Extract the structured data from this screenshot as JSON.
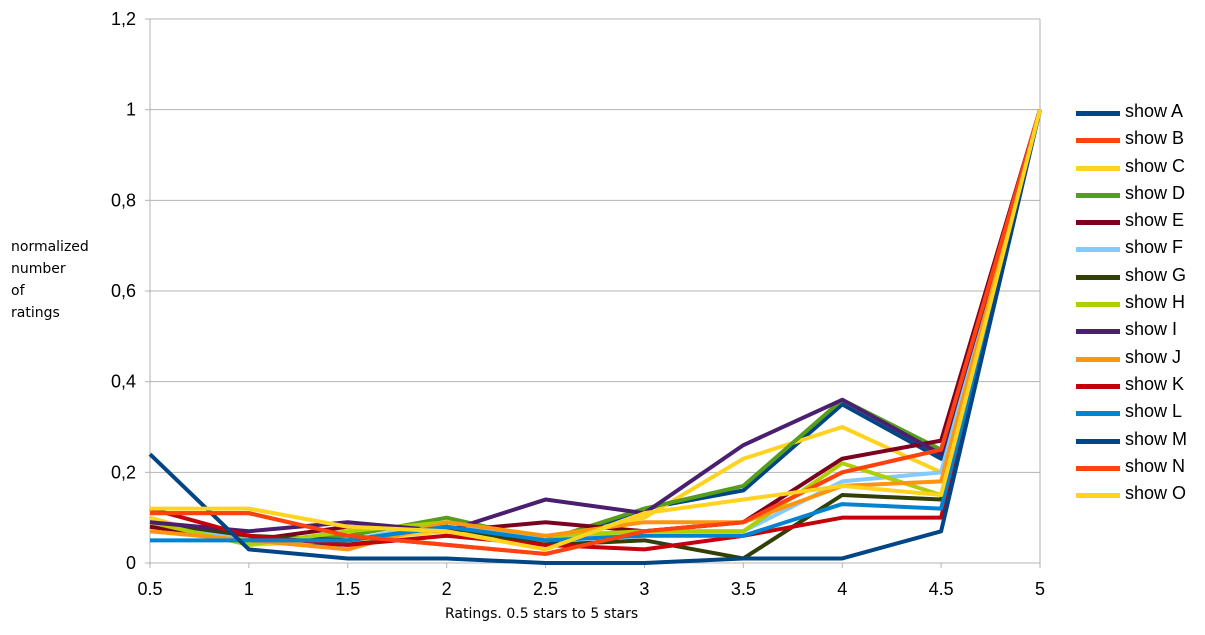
{
  "chart_data": {
    "type": "line",
    "xlabel": "Ratings. 0.5 stars to 5 stars",
    "ylabel_lines": [
      "normalized",
      "number",
      "of",
      "ratings"
    ],
    "x": [
      0.5,
      1,
      1.5,
      2,
      2.5,
      3,
      3.5,
      4,
      4.5,
      5
    ],
    "x_tick_labels": [
      "0.5",
      "1",
      "1.5",
      "2",
      "2.5",
      "3",
      "3.5",
      "4",
      "4.5",
      "5"
    ],
    "ylim": [
      0,
      1.2
    ],
    "y_ticks": [
      0,
      0.2,
      0.4,
      0.6,
      0.8,
      1,
      1.2
    ],
    "y_tick_labels": [
      "0",
      "0,2",
      "0,4",
      "0,6",
      "0,8",
      "1",
      "1,2"
    ],
    "grid": "horizontal",
    "legend_position": "right",
    "series": [
      {
        "name": "show A",
        "color": "#004586",
        "values": [
          0.09,
          0.05,
          0.04,
          0.08,
          0.04,
          0.12,
          0.16,
          0.35,
          0.23,
          1
        ]
      },
      {
        "name": "show B",
        "color": "#ff420e",
        "values": [
          0.11,
          0.11,
          0.06,
          0.04,
          0.02,
          0.07,
          0.09,
          0.2,
          0.25,
          1
        ]
      },
      {
        "name": "show C",
        "color": "#ffd320",
        "values": [
          0.1,
          0.04,
          0.05,
          0.07,
          0.05,
          0.1,
          0.23,
          0.3,
          0.2,
          1
        ]
      },
      {
        "name": "show D",
        "color": "#579d1c",
        "values": [
          0.09,
          0.05,
          0.06,
          0.1,
          0.05,
          0.12,
          0.17,
          0.36,
          0.25,
          1
        ]
      },
      {
        "name": "show E",
        "color": "#7e0021",
        "values": [
          0.08,
          0.05,
          0.08,
          0.07,
          0.09,
          0.07,
          0.09,
          0.23,
          0.27,
          1
        ]
      },
      {
        "name": "show F",
        "color": "#83caff",
        "values": [
          0.09,
          0.05,
          0.05,
          0.09,
          0.05,
          0.07,
          0.07,
          0.18,
          0.2,
          1
        ]
      },
      {
        "name": "show G",
        "color": "#314004",
        "values": [
          0.09,
          0.06,
          0.05,
          0.08,
          0.04,
          0.05,
          0.01,
          0.15,
          0.14,
          1
        ]
      },
      {
        "name": "show H",
        "color": "#aecf00",
        "values": [
          0.09,
          0.04,
          0.07,
          0.09,
          0.06,
          0.07,
          0.07,
          0.22,
          0.15,
          1
        ]
      },
      {
        "name": "show I",
        "color": "#4b1f6f",
        "values": [
          0.09,
          0.07,
          0.09,
          0.07,
          0.14,
          0.11,
          0.26,
          0.36,
          0.24,
          1
        ]
      },
      {
        "name": "show J",
        "color": "#ff950e",
        "values": [
          0.07,
          0.05,
          0.03,
          0.09,
          0.06,
          0.09,
          0.09,
          0.17,
          0.18,
          1
        ]
      },
      {
        "name": "show K",
        "color": "#c5000b",
        "values": [
          0.12,
          0.06,
          0.04,
          0.06,
          0.04,
          0.03,
          0.06,
          0.1,
          0.1,
          1
        ]
      },
      {
        "name": "show L",
        "color": "#0084d1",
        "values": [
          0.05,
          0.05,
          0.05,
          0.08,
          0.05,
          0.06,
          0.06,
          0.13,
          0.12,
          1
        ]
      },
      {
        "name": "show M",
        "color": "#004586",
        "values": [
          0.24,
          0.03,
          0.01,
          0.01,
          0.0,
          0.0,
          0.01,
          0.01,
          0.07,
          1
        ]
      },
      {
        "name": "show N",
        "color": "#ff420e",
        "values": [
          0.11,
          0.11,
          0.06,
          0.04,
          0.02,
          0.07,
          0.09,
          0.2,
          0.25,
          1
        ]
      },
      {
        "name": "show O",
        "color": "#ffd320",
        "values": [
          0.12,
          0.12,
          0.08,
          0.07,
          0.03,
          0.11,
          0.14,
          0.17,
          0.15,
          1
        ]
      }
    ]
  }
}
